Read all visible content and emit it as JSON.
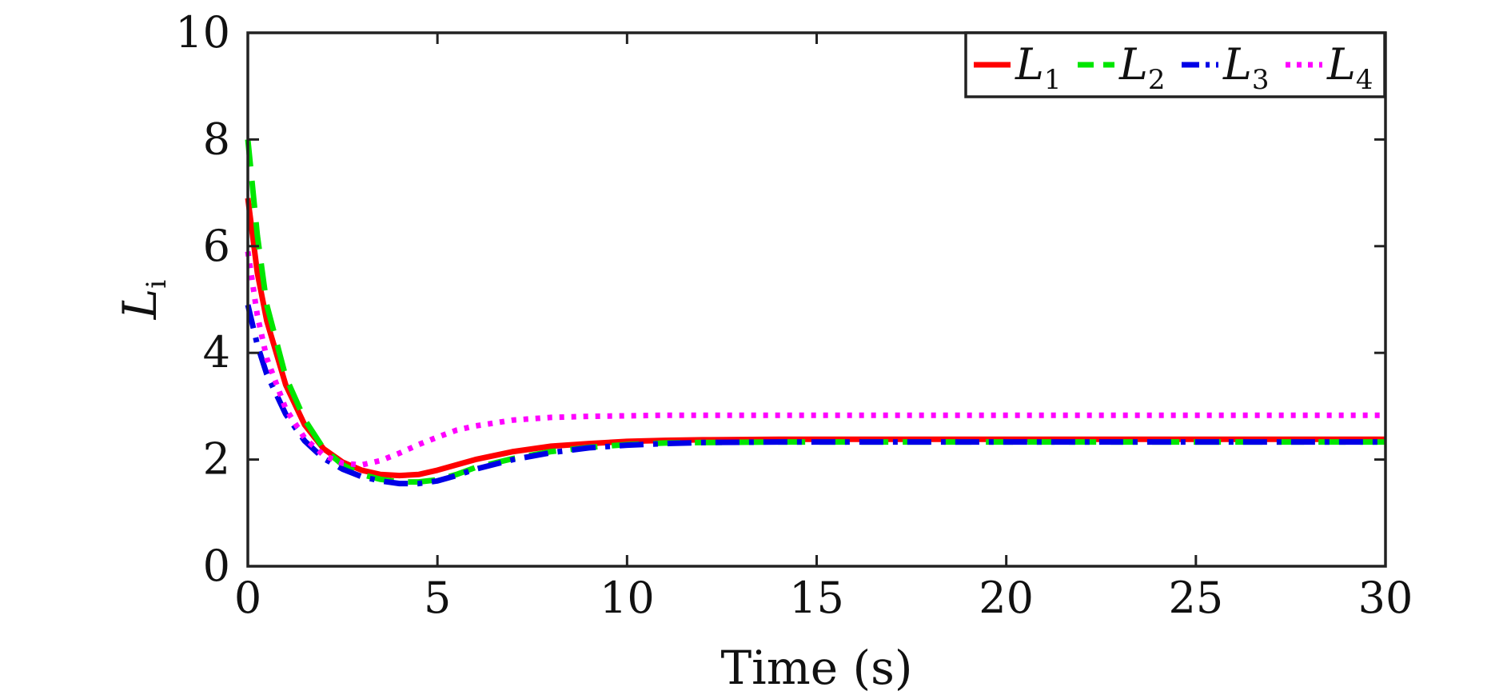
{
  "chart_data": {
    "type": "line",
    "xlabel": "Time (s)",
    "ylabel_main": "L",
    "ylabel_sub": "i",
    "xlim": [
      0,
      30
    ],
    "ylim": [
      0,
      10
    ],
    "xticks": [
      0,
      5,
      10,
      15,
      20,
      25,
      30
    ],
    "yticks": [
      0,
      2,
      4,
      6,
      8,
      10
    ],
    "grid": false,
    "legend_position": "top-right",
    "series": [
      {
        "name": "L1",
        "name_main": "L",
        "name_sub": "1",
        "color": "#ff0000",
        "style": "solid",
        "x": [
          0,
          0.25,
          0.5,
          1,
          1.5,
          2,
          2.5,
          3,
          3.5,
          4,
          4.5,
          5,
          5.5,
          6,
          7,
          8,
          9,
          10,
          11,
          12,
          14,
          16,
          20,
          25,
          30
        ],
        "y": [
          6.9,
          5.5,
          4.6,
          3.4,
          2.65,
          2.2,
          1.95,
          1.8,
          1.72,
          1.7,
          1.72,
          1.8,
          1.9,
          2.0,
          2.15,
          2.25,
          2.3,
          2.34,
          2.36,
          2.37,
          2.38,
          2.38,
          2.38,
          2.38,
          2.38
        ]
      },
      {
        "name": "L2",
        "name_main": "L",
        "name_sub": "2",
        "color": "#00e600",
        "style": "dashed",
        "x": [
          0,
          0.25,
          0.5,
          1,
          1.5,
          2,
          2.5,
          3,
          3.5,
          4,
          4.5,
          5,
          5.5,
          6,
          7,
          8,
          9,
          10,
          11,
          12,
          14,
          16,
          20,
          25,
          30
        ],
        "y": [
          8.0,
          6.2,
          4.9,
          3.55,
          2.75,
          2.2,
          1.9,
          1.72,
          1.63,
          1.58,
          1.58,
          1.62,
          1.72,
          1.85,
          2.02,
          2.15,
          2.23,
          2.28,
          2.31,
          2.32,
          2.33,
          2.33,
          2.33,
          2.33,
          2.33
        ]
      },
      {
        "name": "L3",
        "name_main": "L",
        "name_sub": "3",
        "color": "#0000e6",
        "style": "dashdot",
        "x": [
          0,
          0.25,
          0.5,
          1,
          1.5,
          2,
          2.5,
          3,
          3.5,
          4,
          4.5,
          5,
          5.5,
          6,
          7,
          8,
          9,
          10,
          11,
          12,
          14,
          16,
          20,
          25,
          30
        ],
        "y": [
          4.9,
          4.15,
          3.6,
          2.85,
          2.35,
          2.02,
          1.82,
          1.68,
          1.6,
          1.55,
          1.55,
          1.6,
          1.7,
          1.82,
          2.0,
          2.13,
          2.22,
          2.27,
          2.3,
          2.32,
          2.33,
          2.33,
          2.33,
          2.33,
          2.33
        ]
      },
      {
        "name": "L4",
        "name_main": "L",
        "name_sub": "4",
        "color": "#ff00ff",
        "style": "dotted",
        "x": [
          0,
          0.25,
          0.5,
          1,
          1.5,
          2,
          2.5,
          3,
          3.5,
          4,
          4.5,
          5,
          5.5,
          6,
          7,
          8,
          9,
          10,
          11,
          12,
          14,
          16,
          20,
          25,
          30
        ],
        "y": [
          5.9,
          4.7,
          3.9,
          2.95,
          2.4,
          2.08,
          1.93,
          1.9,
          1.98,
          2.12,
          2.28,
          2.42,
          2.55,
          2.63,
          2.74,
          2.79,
          2.81,
          2.82,
          2.83,
          2.83,
          2.83,
          2.83,
          2.83,
          2.83,
          2.83
        ]
      }
    ]
  }
}
